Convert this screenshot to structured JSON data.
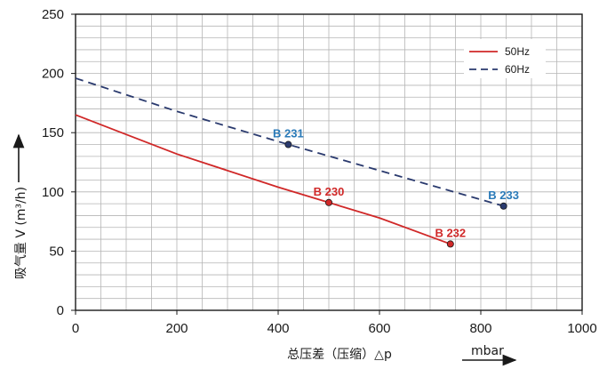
{
  "chart_data": {
    "type": "line",
    "xlabel": "总压差（压缩）△p",
    "xunit": "mbar",
    "ylabel": "吸气量 V (m³/h)",
    "xlim": [
      0,
      1000
    ],
    "ylim": [
      0,
      250
    ],
    "x_ticks": [
      "0",
      "200",
      "400",
      "600",
      "800",
      "1000"
    ],
    "y_ticks": [
      "0",
      "50",
      "100",
      "150",
      "200",
      "250"
    ],
    "grid": true,
    "legend_position": "top-right",
    "series": [
      {
        "name": "50Hz",
        "style": "solid",
        "color": "#d02828",
        "x": [
          0,
          200,
          400,
          500,
          600,
          740
        ],
        "y": [
          165,
          132,
          104,
          91,
          78,
          56
        ]
      },
      {
        "name": "60Hz",
        "style": "dashed",
        "color": "#2a3a6e",
        "x": [
          0,
          200,
          420,
          600,
          845
        ],
        "y": [
          196,
          168,
          140,
          118,
          88
        ]
      }
    ],
    "points": [
      {
        "label": "B 230",
        "x": 500,
        "y": 91,
        "label_color": "#d02828",
        "marker_color": "#d02828"
      },
      {
        "label": "B 232",
        "x": 740,
        "y": 56,
        "label_color": "#d02828",
        "marker_color": "#d02828"
      },
      {
        "label": "B 231",
        "x": 420,
        "y": 140,
        "label_color": "#2a7ab8",
        "marker_color": "#2a3a6e"
      },
      {
        "label": "B 233",
        "x": 845,
        "y": 88,
        "label_color": "#2a7ab8",
        "marker_color": "#2a3a6e"
      }
    ]
  }
}
